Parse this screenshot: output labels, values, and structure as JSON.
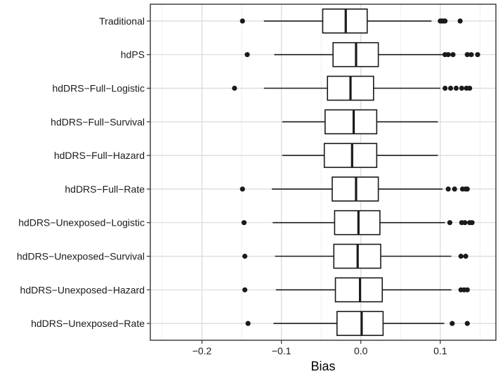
{
  "chart_data": {
    "type": "boxplot",
    "orientation": "horizontal",
    "title": "",
    "xlabel": "Bias",
    "ylabel": "",
    "xlim": [
      -0.265,
      0.17
    ],
    "x_ticks": [
      -0.2,
      -0.1,
      0.0,
      0.1
    ],
    "x_tick_labels": [
      "−0.2",
      "−0.1",
      "0.0",
      "0.1"
    ],
    "grid": true,
    "legend": "none",
    "categories": [
      "Traditional",
      "hdPS",
      "hdDRS−Full−Logistic",
      "hdDRS−Full−Survival",
      "hdDRS−Full−Hazard",
      "hdDRS−Full−Rate",
      "hdDRS−Unexposed−Logistic",
      "hdDRS−Unexposed−Survival",
      "hdDRS−Unexposed−Hazard",
      "hdDRS−Unexposed−Rate"
    ],
    "boxes": [
      {
        "whisker_low": -0.122,
        "q1": -0.048,
        "median": -0.019,
        "q3": 0.008,
        "whisker_high": 0.089,
        "outliers": [
          -0.149,
          0.1,
          0.102,
          0.104,
          0.106,
          0.125
        ]
      },
      {
        "whisker_low": -0.109,
        "q1": -0.035,
        "median": -0.006,
        "q3": 0.022,
        "whisker_high": 0.103,
        "outliers": [
          -0.143,
          0.106,
          0.11,
          0.116,
          0.134,
          0.139,
          0.147
        ]
      },
      {
        "whisker_low": -0.122,
        "q1": -0.042,
        "median": -0.013,
        "q3": 0.016,
        "whisker_high": 0.1,
        "outliers": [
          -0.159,
          0.106,
          0.113,
          0.12,
          0.127,
          0.133,
          0.137
        ]
      },
      {
        "whisker_low": -0.099,
        "q1": -0.045,
        "median": -0.009,
        "q3": 0.02,
        "whisker_high": 0.097,
        "outliers": []
      },
      {
        "whisker_low": -0.099,
        "q1": -0.046,
        "median": -0.011,
        "q3": 0.02,
        "whisker_high": 0.097,
        "outliers": []
      },
      {
        "whisker_low": -0.112,
        "q1": -0.036,
        "median": -0.006,
        "q3": 0.022,
        "whisker_high": 0.103,
        "outliers": [
          -0.149,
          0.11,
          0.118,
          0.128,
          0.132,
          0.134
        ]
      },
      {
        "whisker_low": -0.111,
        "q1": -0.033,
        "median": -0.003,
        "q3": 0.024,
        "whisker_high": 0.106,
        "outliers": [
          -0.147,
          0.112,
          0.127,
          0.131,
          0.137,
          0.14
        ]
      },
      {
        "whisker_low": -0.108,
        "q1": -0.034,
        "median": -0.004,
        "q3": 0.025,
        "whisker_high": 0.114,
        "outliers": [
          -0.146,
          0.126,
          0.132
        ]
      },
      {
        "whisker_low": -0.107,
        "q1": -0.032,
        "median": -0.001,
        "q3": 0.027,
        "whisker_high": 0.114,
        "outliers": [
          -0.146,
          0.126,
          0.13,
          0.134
        ]
      },
      {
        "whisker_low": -0.11,
        "q1": -0.03,
        "median": 0.001,
        "q3": 0.028,
        "whisker_high": 0.105,
        "outliers": [
          -0.142,
          0.115,
          0.134
        ]
      }
    ],
    "colors": {
      "panel_border": "#333333",
      "grid_major": "#d9d9d9",
      "grid_minor": "#efefef",
      "box_stroke": "#1a1a1a",
      "box_fill": "#ffffff",
      "outlier": "#1a1a1a"
    }
  }
}
